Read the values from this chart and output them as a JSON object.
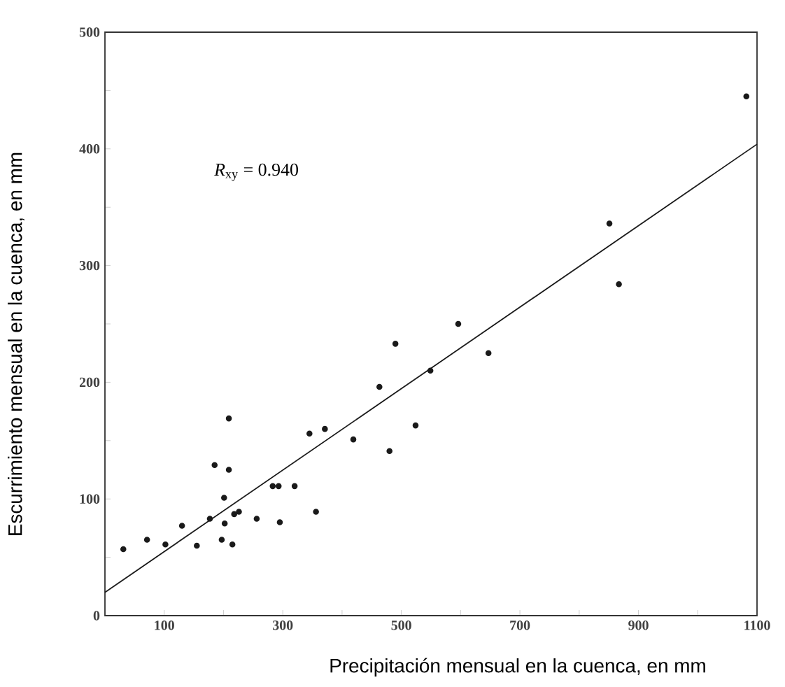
{
  "chart_data": {
    "type": "scatter",
    "xlabel": "Precipitación mensual en la cuenca, en mm",
    "ylabel": "Escurrimiento mensual en la cuenca, en mm",
    "xlim": [
      0,
      1100
    ],
    "ylim": [
      0,
      500
    ],
    "xticks": [
      {
        "value": 100,
        "label": "100"
      },
      {
        "value": 200,
        "label": null
      },
      {
        "value": 300,
        "label": "300"
      },
      {
        "value": 400,
        "label": null
      },
      {
        "value": 500,
        "label": "500"
      },
      {
        "value": 600,
        "label": null
      },
      {
        "value": 700,
        "label": "700"
      },
      {
        "value": 800,
        "label": null
      },
      {
        "value": 900,
        "label": "900"
      },
      {
        "value": 1000,
        "label": null
      },
      {
        "value": 1100,
        "label": "1100"
      }
    ],
    "yticks": [
      0,
      {
        "value": 50,
        "label": null
      },
      100,
      {
        "value": 150,
        "label": null
      },
      200,
      {
        "value": 250,
        "label": null
      },
      300,
      {
        "value": 350,
        "label": null
      },
      400,
      {
        "value": 450,
        "label": null
      },
      500
    ],
    "annotations": [
      "*R*$_{xy}$ = 0.940"
    ],
    "series": [
      {
        "marker": "circle",
        "color": "#1a1a1a",
        "x": [
          1082,
          851,
          867,
          596,
          490,
          647,
          549,
          463,
          209,
          345,
          371,
          419,
          524,
          480,
          185,
          209,
          201,
          283,
          293,
          320,
          356,
          295,
          256,
          218,
          226,
          202,
          197,
          215,
          177,
          155,
          130,
          102,
          71,
          31
        ],
        "values": [
          445,
          336,
          284,
          250,
          233,
          225,
          210,
          196,
          169,
          156,
          160,
          151,
          163,
          141,
          129,
          125,
          101,
          111,
          111,
          111,
          89,
          80,
          83,
          87,
          89,
          79,
          65,
          61,
          83,
          60,
          77,
          61,
          65,
          57
        ]
      },
      {
        "type": "line",
        "marker": "none",
        "line_style": "solid",
        "color": "#1a1a1a",
        "x": [
          0,
          1100
        ],
        "values": [
          20,
          404
        ]
      }
    ]
  }
}
